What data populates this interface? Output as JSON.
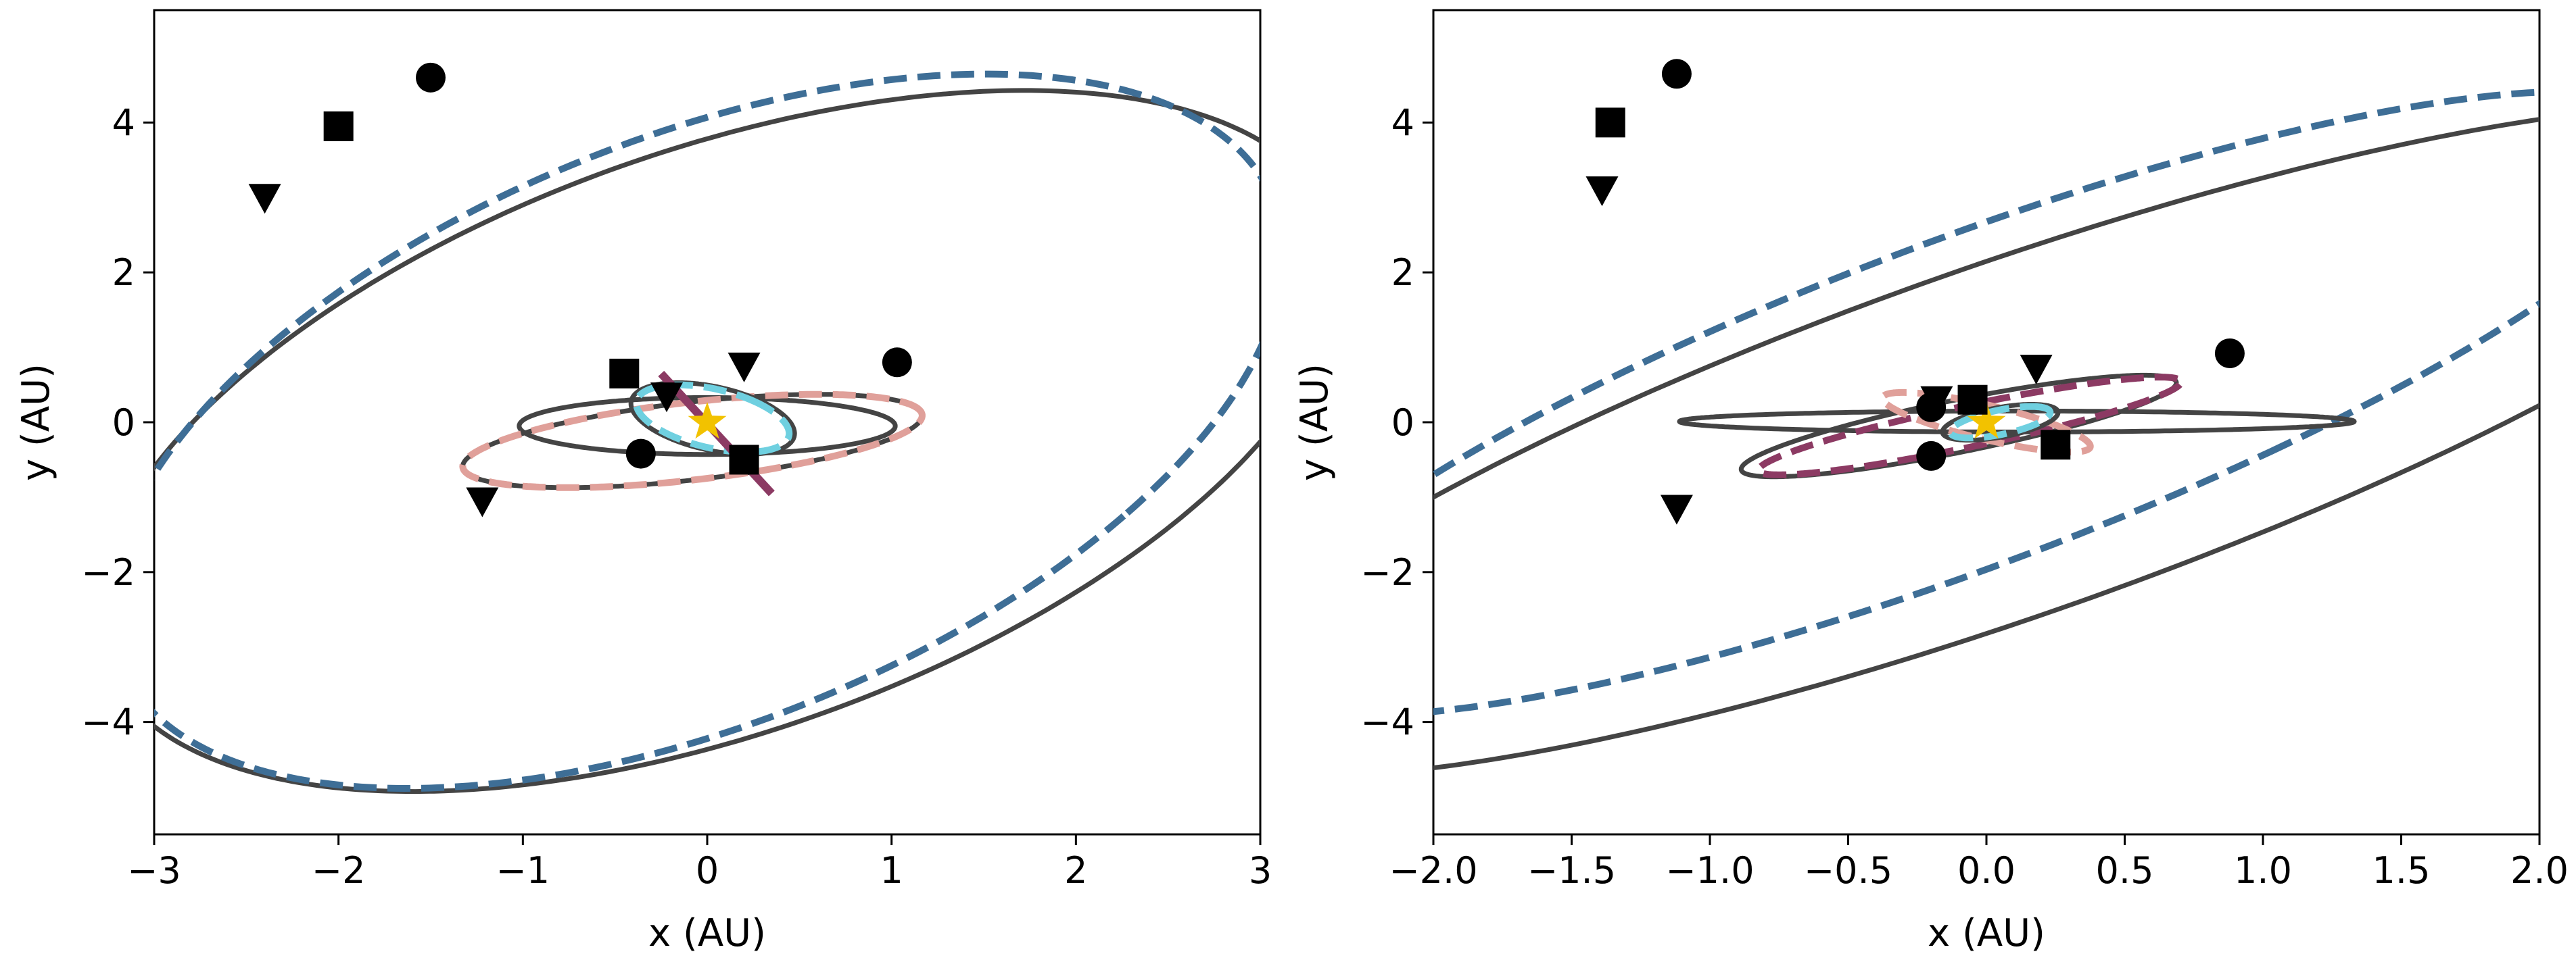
{
  "chart_data": [
    {
      "type": "line",
      "panel": "left",
      "title": "",
      "xlabel": "x (AU)",
      "ylabel": "y (AU)",
      "xlim": [
        -3,
        3
      ],
      "ylim": [
        -5.5,
        5.5
      ],
      "xticks": [
        -3,
        -2,
        -1,
        0,
        1,
        2,
        3
      ],
      "yticks": [
        -4,
        -2,
        0,
        2,
        4
      ],
      "grid": false,
      "legend": "none",
      "center_marker": {
        "x": 0,
        "y": 0,
        "shape": "star",
        "color": "#f2c200"
      },
      "series": [
        {
          "ellipse": {
            "cx": 0.06,
            "cy": -0.25,
            "a": 2.7,
            "b": 5.1,
            "angle_deg": -28
          },
          "style": "solid",
          "color": "#444444"
        },
        {
          "ellipse": {
            "cx": -0.06,
            "cy": -0.12,
            "a": 2.58,
            "b": 5.12,
            "angle_deg": -25
          },
          "style": "dashed",
          "color": "#3e6e96"
        },
        {
          "ellipse": {
            "cx": 0,
            "cy": -0.05,
            "a": 1.02,
            "b": 0.38,
            "angle_deg": 0
          },
          "style": "solid",
          "color": "#444444"
        },
        {
          "ellipse": {
            "cx": -0.08,
            "cy": -0.25,
            "a": 1.3,
            "b": 0.5,
            "angle_deg": 18
          },
          "style": "solid",
          "color": "#444444"
        },
        {
          "ellipse": {
            "cx": -0.08,
            "cy": -0.25,
            "a": 1.3,
            "b": 0.5,
            "angle_deg": 18
          },
          "style": "dashed",
          "color": "#e0a09a"
        },
        {
          "ellipse": {
            "cx": 0.03,
            "cy": 0.05,
            "a": 0.35,
            "b": 0.55,
            "angle_deg": 40
          },
          "style": "solid",
          "color": "#444444"
        },
        {
          "ellipse": {
            "cx": 0.03,
            "cy": 0.05,
            "a": 0.32,
            "b": 0.52,
            "angle_deg": 40
          },
          "style": "dashed",
          "color": "#6fd0e0"
        },
        {
          "line": {
            "x": [
              -0.25,
              0.35
            ],
            "y": [
              0.65,
              -0.95
            ]
          },
          "style": "solid",
          "color": "#8c3a63"
        }
      ],
      "markers": [
        {
          "shape": "circle",
          "x": -1.5,
          "y": 4.6
        },
        {
          "shape": "square",
          "x": -2.0,
          "y": 3.95
        },
        {
          "shape": "triangle-down",
          "x": -2.4,
          "y": 3.0
        },
        {
          "shape": "circle",
          "x": 1.03,
          "y": 0.8
        },
        {
          "shape": "square",
          "x": -0.45,
          "y": 0.65
        },
        {
          "shape": "triangle-down",
          "x": 0.2,
          "y": 0.75
        },
        {
          "shape": "triangle-down",
          "x": -1.22,
          "y": -1.05
        },
        {
          "shape": "circle",
          "x": -0.36,
          "y": -0.42
        },
        {
          "shape": "square",
          "x": 0.2,
          "y": -0.5
        },
        {
          "shape": "triangle-down",
          "x": -0.22,
          "y": 0.35
        }
      ]
    },
    {
      "type": "line",
      "panel": "right",
      "title": "",
      "xlabel": "x (AU)",
      "ylabel": "y (AU)",
      "xlim": [
        -2,
        2
      ],
      "ylim": [
        -5.5,
        5.5
      ],
      "xticks": [
        -2.0,
        -1.5,
        -1.0,
        -0.5,
        0.0,
        0.5,
        1.0,
        1.5,
        2.0
      ],
      "yticks": [
        -4,
        -2,
        0,
        2,
        4
      ],
      "grid": false,
      "legend": "none",
      "center_marker": {
        "x": 0,
        "y": 0,
        "shape": "star",
        "color": "#f2c200"
      },
      "series": [
        {
          "ellipse": {
            "cx": 0.07,
            "cy": -0.25,
            "a": 1.44,
            "b": 5.2,
            "angle_deg": -32
          },
          "style": "solid",
          "color": "#444444"
        },
        {
          "ellipse": {
            "cx": -0.08,
            "cy": 0.25,
            "a": 1.28,
            "b": 4.75,
            "angle_deg": -30
          },
          "style": "dashed",
          "color": "#3e6e96"
        },
        {
          "ellipse": {
            "cx": 0.11,
            "cy": 0.01,
            "a": 1.22,
            "b": 0.14,
            "angle_deg": 0
          },
          "style": "solid",
          "color": "#444444"
        },
        {
          "ellipse": {
            "cx": -0.1,
            "cy": -0.05,
            "a": 1.0,
            "b": 0.28,
            "angle_deg": 40
          },
          "style": "solid",
          "color": "#444444"
        },
        {
          "ellipse": {
            "cx": -0.06,
            "cy": -0.05,
            "a": 0.98,
            "b": 0.22,
            "angle_deg": 40
          },
          "style": "dashed",
          "color": "#8c3a63"
        },
        {
          "ellipse": {
            "cx": 0.0,
            "cy": 0.0,
            "a": 0.52,
            "b": 0.17,
            "angle_deg": -47
          },
          "style": "dashed",
          "color": "#e0a09a"
        },
        {
          "ellipse": {
            "cx": 0.05,
            "cy": 0.0,
            "a": 0.28,
            "b": 0.15,
            "angle_deg": 52
          },
          "style": "solid",
          "color": "#444444"
        },
        {
          "ellipse": {
            "cx": 0.05,
            "cy": 0.0,
            "a": 0.25,
            "b": 0.12,
            "angle_deg": 52
          },
          "style": "dashed",
          "color": "#6fd0e0"
        }
      ],
      "markers": [
        {
          "shape": "circle",
          "x": -1.12,
          "y": 4.65
        },
        {
          "shape": "square",
          "x": -1.36,
          "y": 4.0
        },
        {
          "shape": "triangle-down",
          "x": -1.39,
          "y": 3.1
        },
        {
          "shape": "circle",
          "x": 0.88,
          "y": 0.92
        },
        {
          "shape": "triangle-down",
          "x": 0.18,
          "y": 0.72
        },
        {
          "shape": "triangle-down",
          "x": -1.12,
          "y": -1.15
        },
        {
          "shape": "circle",
          "x": -0.2,
          "y": -0.45
        },
        {
          "shape": "square",
          "x": 0.25,
          "y": -0.3
        },
        {
          "shape": "triangle-down",
          "x": -0.18,
          "y": 0.3
        },
        {
          "shape": "circle",
          "x": -0.2,
          "y": 0.2
        },
        {
          "shape": "square",
          "x": -0.05,
          "y": 0.3
        }
      ]
    }
  ]
}
